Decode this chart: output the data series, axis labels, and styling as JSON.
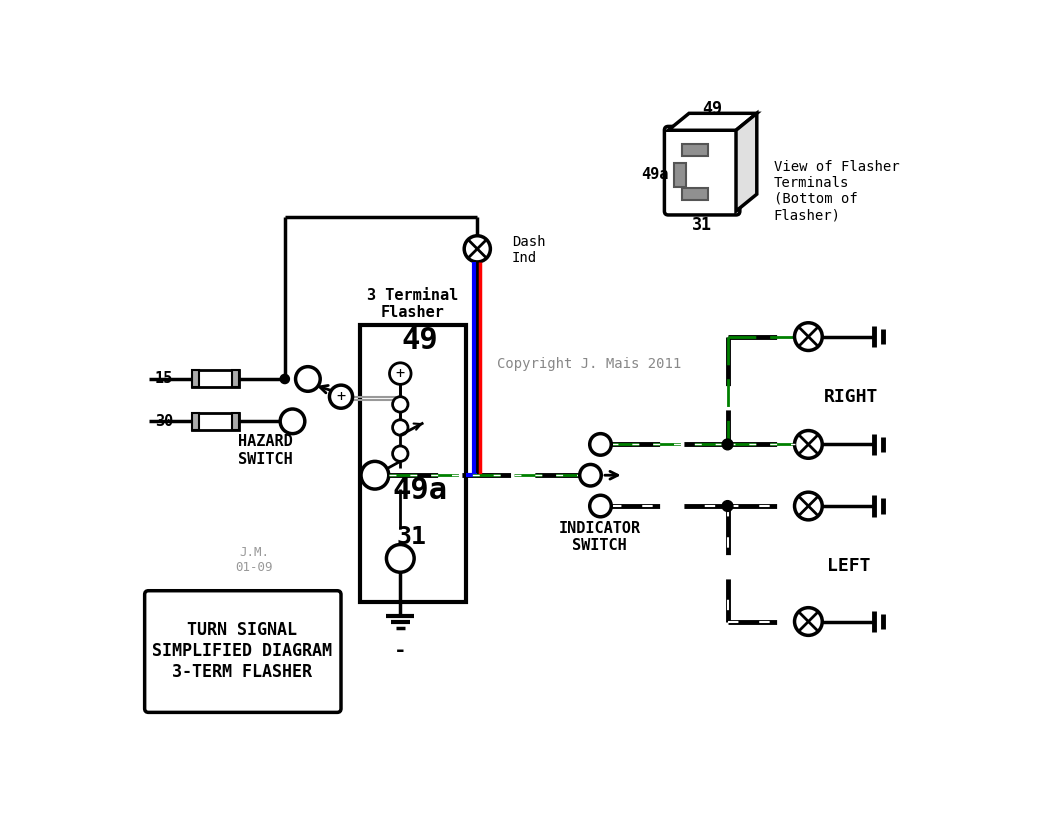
{
  "bg": "white",
  "copyright": "Copyright J. Mais 2011",
  "jm_label": "J.M.\n01-09",
  "box_text": "TURN SIGNAL\nSIMPLIFIED DIAGRAM\n3-TERM FLASHER",
  "flasher_title": "3 Terminal\nFlasher",
  "right_label": "RIGHT",
  "left_label": "LEFT",
  "hazard_label": "HAZARD\nSWITCH",
  "indicator_label": "INDICATOR\nSWITCH",
  "dash_label": "Dash\nInd",
  "view_label": "View of Flasher\nTerminals\n(Bottom of\nFlasher)",
  "label_15": "15",
  "label_30": "30",
  "label_49": "49",
  "label_49a": "49a",
  "label_31": "31"
}
